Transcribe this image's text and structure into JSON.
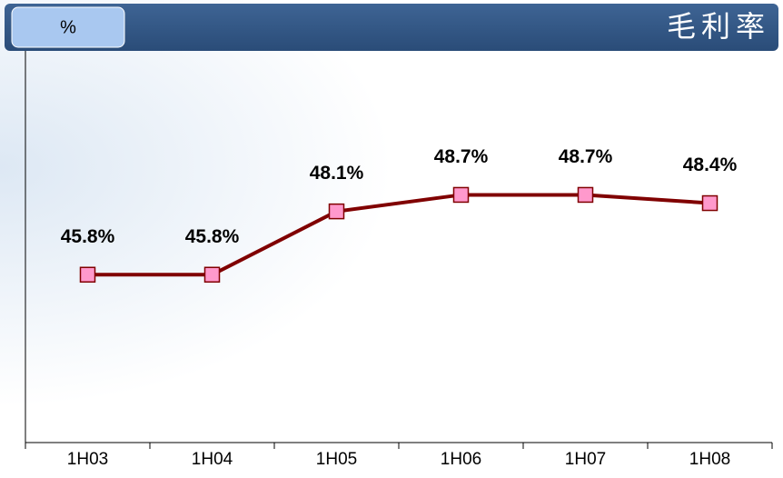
{
  "chart_data": {
    "type": "line",
    "title": "毛利率",
    "unit_label": "%",
    "categories": [
      "1H03",
      "1H04",
      "1H05",
      "1H06",
      "1H07",
      "1H08"
    ],
    "series": [
      {
        "color": "#800000",
        "marker_color": "#ff99cc",
        "values": [
          45.8,
          45.8,
          48.1,
          48.7,
          48.7,
          48.4
        ],
        "value_labels": [
          "45.8%",
          "45.8%",
          "48.1%",
          "48.7%",
          "48.7%",
          "48.4%"
        ]
      }
    ],
    "ylim": [
      39.7,
      53.8
    ]
  }
}
